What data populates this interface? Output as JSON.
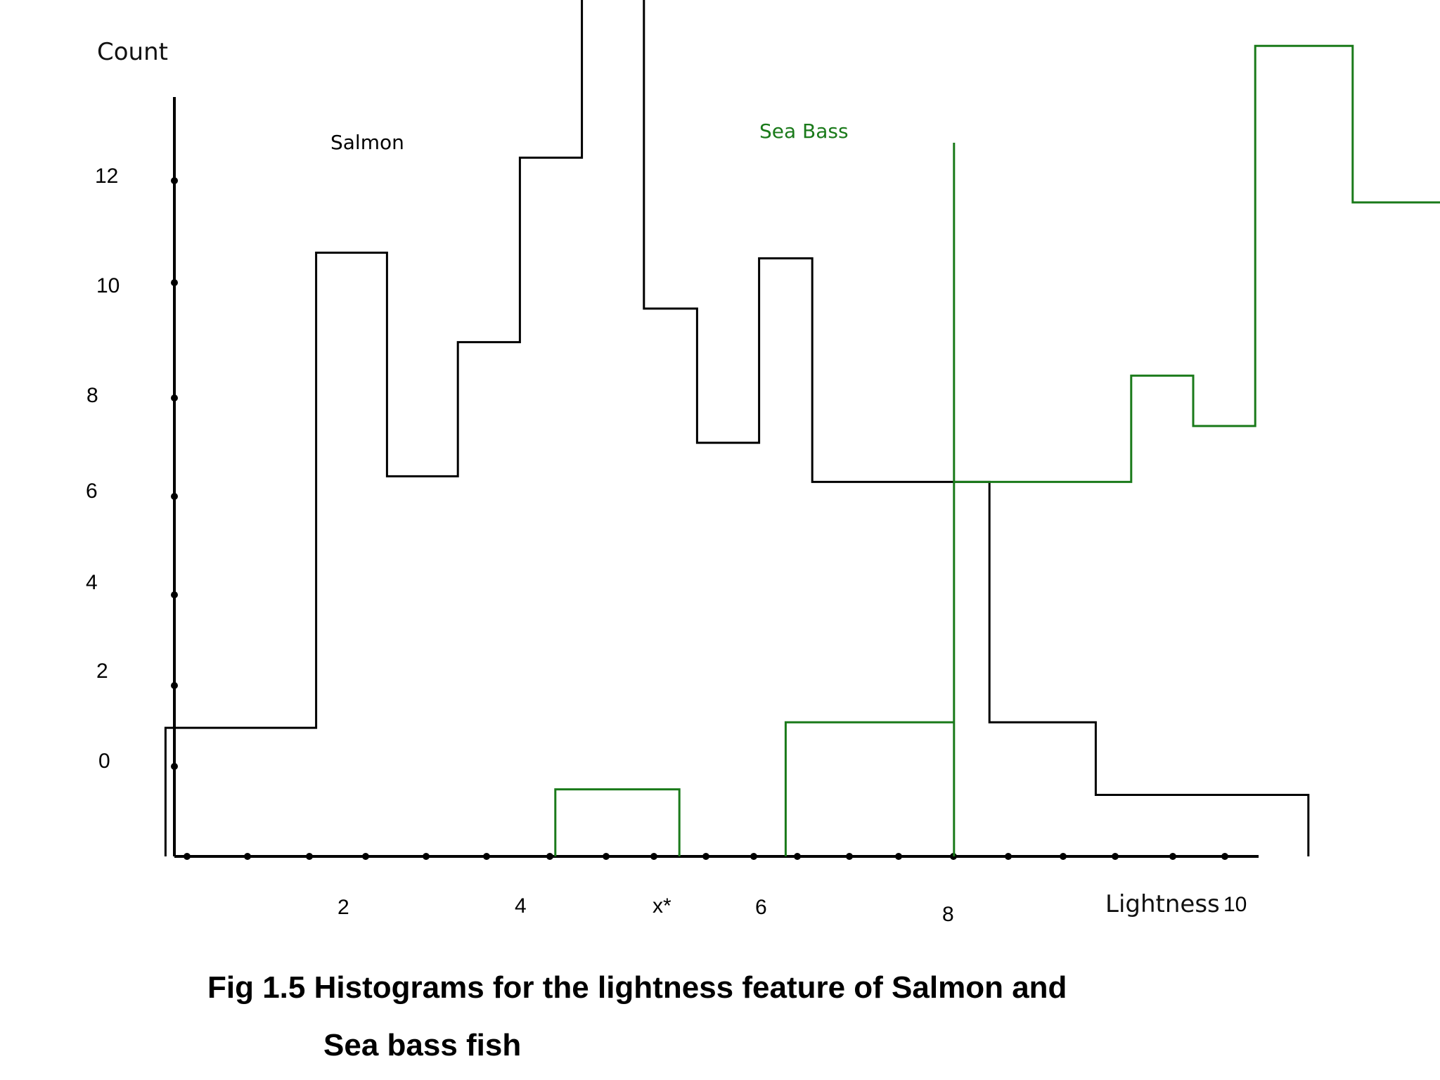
{
  "chart_data": {
    "type": "histogram-step",
    "title": "",
    "ylabel": "Count",
    "xlabel": "Lightness",
    "x_ticks": [
      {
        "label": "2",
        "value": 2
      },
      {
        "label": "4",
        "value": 4
      },
      {
        "label": "x*",
        "value": 5.4
      },
      {
        "label": "6",
        "value": 6.5
      },
      {
        "label": "8",
        "value": 8.6
      },
      {
        "label": "10",
        "value": 10.3
      }
    ],
    "y_ticks": [
      {
        "label": "0",
        "value": 0
      },
      {
        "label": "2",
        "value": 2
      },
      {
        "label": "4",
        "value": 4
      },
      {
        "label": "6",
        "value": 6
      },
      {
        "label": "8",
        "value": 8
      },
      {
        "label": "10",
        "value": 10
      },
      {
        "label": "12",
        "value": 12
      }
    ],
    "threshold": {
      "label": "x*",
      "value": 5.4
    },
    "colors": {
      "salmon": "#000000",
      "seabass": "#1a7a1a",
      "threshold": "#1a7a1a"
    },
    "series": [
      {
        "name": "Salmon",
        "steps": [
          [
            0.95,
            0
          ],
          [
            0.95,
            2.3
          ],
          [
            1.8,
            2.3
          ],
          [
            1.8,
            10.8
          ],
          [
            2.2,
            10.8
          ],
          [
            2.2,
            6.8
          ],
          [
            2.6,
            6.8
          ],
          [
            2.6,
            9.2
          ],
          [
            2.95,
            9.2
          ],
          [
            2.95,
            12.5
          ],
          [
            3.3,
            12.5
          ],
          [
            3.3,
            15.4
          ],
          [
            3.65,
            15.4
          ],
          [
            3.65,
            9.8
          ],
          [
            3.95,
            9.8
          ],
          [
            3.95,
            7.4
          ],
          [
            4.3,
            7.4
          ],
          [
            4.3,
            10.7
          ],
          [
            4.6,
            10.7
          ],
          [
            4.6,
            6.7
          ],
          [
            5.6,
            6.7
          ],
          [
            5.6,
            2.4
          ],
          [
            6.2,
            2.4
          ],
          [
            6.2,
            1.1
          ],
          [
            7.4,
            1.1
          ],
          [
            7.4,
            0
          ]
        ]
      },
      {
        "name": "Sea Bass",
        "segments": [
          [
            [
              3.15,
              0
            ],
            [
              3.15,
              1.2
            ],
            [
              3.85,
              1.2
            ],
            [
              3.85,
              0
            ]
          ],
          [
            [
              4.45,
              0
            ],
            [
              4.45,
              2.4
            ],
            [
              5.4,
              2.4
            ]
          ],
          [
            [
              5.4,
              6.7
            ],
            [
              6.4,
              6.7
            ],
            [
              6.4,
              8.6
            ],
            [
              6.75,
              8.6
            ],
            [
              6.75,
              7.7
            ],
            [
              7.1,
              7.7
            ],
            [
              7.1,
              14.5
            ],
            [
              7.65,
              14.5
            ],
            [
              7.65,
              11.7
            ],
            [
              9.1,
              11.7
            ],
            [
              9.1,
              4.5
            ],
            [
              9.7,
              4.5
            ],
            [
              9.7,
              3.1
            ],
            [
              10.45,
              3.1
            ],
            [
              10.45,
              4.4
            ],
            [
              11.1,
              4.4
            ]
          ]
        ]
      }
    ]
  },
  "caption": {
    "line1": "Fig 1.5 Histograms for the lightness feature of Salmon and",
    "line2": "Sea bass fish"
  }
}
